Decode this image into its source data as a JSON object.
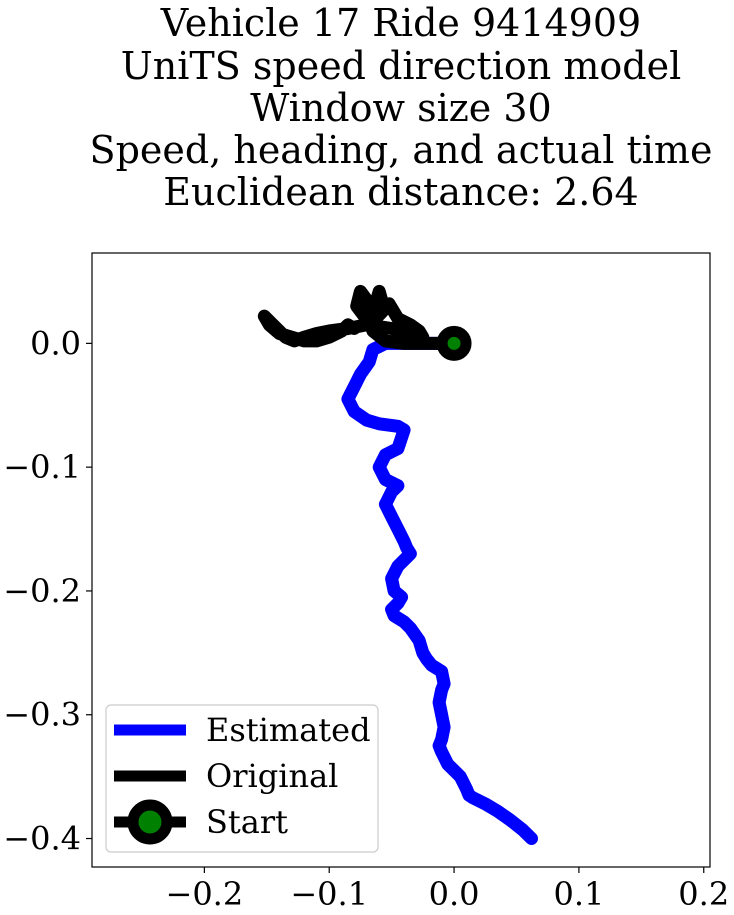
{
  "chart_data": {
    "type": "line",
    "title_lines": [
      "Vehicle 17 Ride 9414909",
      "UniTS speed direction model",
      "Window size 30",
      "Speed, heading, and actual time",
      "Euclidean distance: 2.64"
    ],
    "xlabel": "",
    "ylabel": "",
    "xlim": [
      -0.29,
      0.205
    ],
    "ylim": [
      -0.423,
      0.073
    ],
    "x_ticks": [
      -0.2,
      -0.1,
      0.0,
      0.1,
      0.2
    ],
    "x_tick_labels": [
      "−0.2",
      "−0.1",
      "0.0",
      "0.1",
      "0.2"
    ],
    "y_ticks": [
      0.0,
      -0.1,
      -0.2,
      -0.3,
      -0.4
    ],
    "y_tick_labels": [
      "0.0",
      "−0.1",
      "−0.2",
      "−0.3",
      "−0.4"
    ],
    "grid": false,
    "legend_position": "lower-left",
    "legend": [
      "Estimated",
      "Original",
      "Start"
    ],
    "series": [
      {
        "name": "Estimated",
        "color": "#0000ff",
        "x": [
          0.0,
          -0.02,
          -0.04,
          -0.055,
          -0.065,
          -0.068,
          -0.075,
          -0.08,
          -0.085,
          -0.08,
          -0.07,
          -0.06,
          -0.045,
          -0.04,
          -0.045,
          -0.055,
          -0.06,
          -0.055,
          -0.045,
          -0.05,
          -0.055,
          -0.05,
          -0.045,
          -0.04,
          -0.038,
          -0.035,
          -0.04,
          -0.045,
          -0.05,
          -0.048,
          -0.042,
          -0.045,
          -0.05,
          -0.048,
          -0.04,
          -0.035,
          -0.028,
          -0.025,
          -0.022,
          -0.018,
          -0.01,
          -0.008,
          -0.01,
          -0.012,
          -0.01,
          -0.008,
          -0.01,
          -0.012,
          -0.01,
          -0.005,
          0.0,
          0.005,
          0.01,
          0.012,
          0.015,
          0.025,
          0.035,
          0.045,
          0.055,
          0.062
        ],
        "y": [
          0.0,
          0.0,
          0.0,
          0.0,
          -0.005,
          -0.015,
          -0.025,
          -0.035,
          -0.045,
          -0.055,
          -0.062,
          -0.065,
          -0.067,
          -0.07,
          -0.085,
          -0.09,
          -0.1,
          -0.11,
          -0.115,
          -0.12,
          -0.13,
          -0.14,
          -0.15,
          -0.16,
          -0.165,
          -0.17,
          -0.175,
          -0.18,
          -0.19,
          -0.2,
          -0.205,
          -0.21,
          -0.215,
          -0.22,
          -0.225,
          -0.23,
          -0.24,
          -0.25,
          -0.255,
          -0.26,
          -0.265,
          -0.275,
          -0.28,
          -0.29,
          -0.3,
          -0.31,
          -0.32,
          -0.325,
          -0.33,
          -0.34,
          -0.345,
          -0.35,
          -0.36,
          -0.365,
          -0.367,
          -0.372,
          -0.378,
          -0.385,
          -0.393,
          -0.4
        ]
      },
      {
        "name": "Original",
        "color": "#000000",
        "x": [
          0.0,
          -0.02,
          -0.04,
          -0.055,
          -0.065,
          -0.068,
          -0.065,
          -0.062,
          -0.06,
          -0.058,
          -0.062,
          -0.07,
          -0.075,
          -0.078,
          -0.072,
          -0.065,
          -0.058,
          -0.052,
          -0.045,
          -0.035,
          -0.028,
          -0.025,
          -0.032,
          -0.05,
          -0.07,
          -0.085,
          -0.1,
          -0.11,
          -0.12,
          -0.128,
          -0.135,
          -0.14,
          -0.145,
          -0.15,
          -0.152,
          -0.148,
          -0.14,
          -0.13,
          -0.12,
          -0.11,
          -0.1,
          -0.09,
          -0.085,
          -0.08
        ],
        "y": [
          0.0,
          0.0,
          0.0,
          0.002,
          0.01,
          0.02,
          0.028,
          0.035,
          0.042,
          0.035,
          0.028,
          0.035,
          0.042,
          0.03,
          0.022,
          0.018,
          0.025,
          0.032,
          0.02,
          0.015,
          0.01,
          0.005,
          0.008,
          0.012,
          0.015,
          0.012,
          0.01,
          0.008,
          0.005,
          0.002,
          0.005,
          0.01,
          0.015,
          0.02,
          0.022,
          0.015,
          0.008,
          0.005,
          0.002,
          0.002,
          0.005,
          0.01,
          0.015,
          0.012
        ]
      }
    ],
    "start_point": {
      "name": "Start",
      "x": 0.0,
      "y": 0.0,
      "edge_color": "#000000",
      "fill_color": "#008000"
    }
  }
}
